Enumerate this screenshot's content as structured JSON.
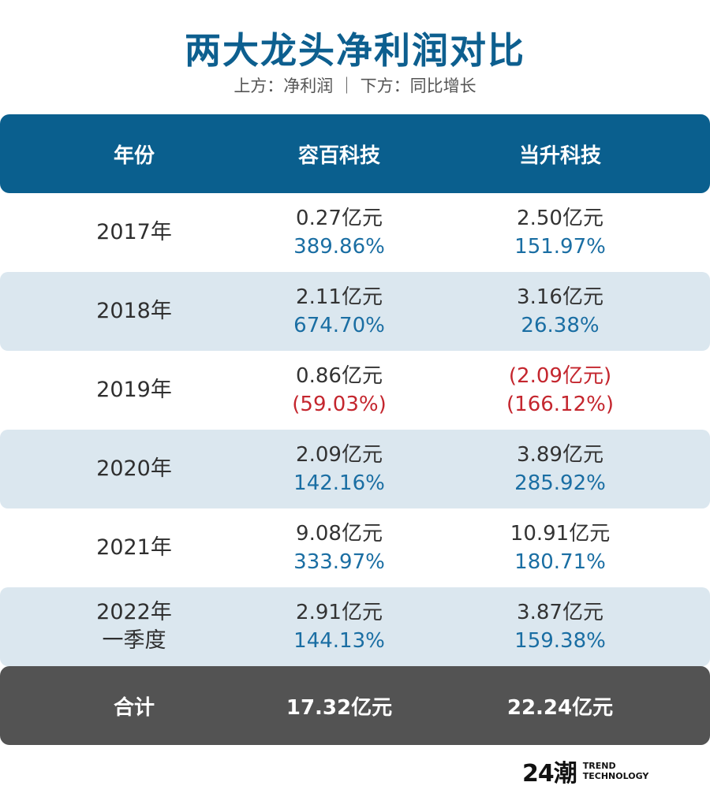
{
  "title": "两大龙头净利润对比",
  "subtitle": "上方：净利润 ｜ 下方：同比增长",
  "header": {
    "year": "年份",
    "company_a": "容百科技",
    "company_b": "当升科技"
  },
  "rows": [
    {
      "year": "2017年",
      "year2": "",
      "a_profit": "0.27亿元",
      "a_growth": "389.86%",
      "b_profit": "2.50亿元",
      "b_growth": "151.97%"
    },
    {
      "year": "2018年",
      "year2": "",
      "a_profit": "2.11亿元",
      "a_growth": "674.70%",
      "b_profit": "3.16亿元",
      "b_growth": "26.38%"
    },
    {
      "year": "2019年",
      "year2": "",
      "a_profit": "0.86亿元",
      "a_growth": "(59.03%)",
      "b_profit": "(2.09亿元)",
      "b_growth": "(166.12%)"
    },
    {
      "year": "2020年",
      "year2": "",
      "a_profit": "2.09亿元",
      "a_growth": "142.16%",
      "b_profit": "3.89亿元",
      "b_growth": "285.92%"
    },
    {
      "year": "2021年",
      "year2": "",
      "a_profit": "9.08亿元",
      "a_growth": "333.97%",
      "b_profit": "10.91亿元",
      "b_growth": "180.71%"
    },
    {
      "year": "2022年",
      "year2": "一季度",
      "a_profit": "2.91亿元",
      "a_growth": "144.13%",
      "b_profit": "3.87亿元",
      "b_growth": "159.38%"
    }
  ],
  "total": {
    "label": "合计",
    "a": "17.32亿元",
    "b": "22.24亿元"
  },
  "logo": {
    "mark": "24潮",
    "line1": "TREND",
    "line2": "TECHNOLOGY"
  },
  "colors": {
    "brand_blue": "#0a5f8e",
    "growth_blue": "#1a6ea3",
    "negative_red": "#c4262e",
    "total_gray": "#535353",
    "alt_row": "#dbe7ef"
  }
}
